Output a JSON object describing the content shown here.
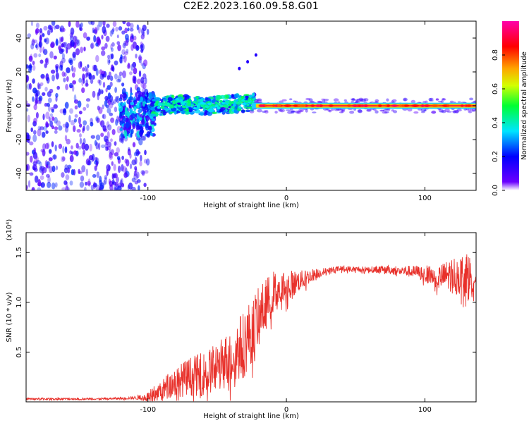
{
  "title": "C2E2.2023.160.09.58.G01",
  "colors": {
    "snr_line": "#e8302a",
    "low_amp": "#7a2ee8",
    "high_amp": "#ff2a2a",
    "frame": "#000000"
  },
  "chart_data": [
    {
      "type": "heatmap",
      "xlabel": "Height of straight line (km)",
      "ylabel": "Frequency (Hz)",
      "xlim": [
        -188,
        137
      ],
      "ylim": [
        -50,
        50
      ],
      "x_ticks": [
        -100,
        0,
        100
      ],
      "x_tick_labels": [
        "-100",
        "0",
        "100"
      ],
      "y_ticks": [
        -40,
        -20,
        0,
        20,
        40
      ],
      "y_tick_labels": [
        "-40",
        "-20",
        "0",
        "20",
        "40"
      ],
      "colorbar": {
        "label": "Normalized spectral amplitude",
        "range": [
          0,
          1
        ],
        "ticks": [
          0.0,
          0.2,
          0.4,
          0.6,
          0.8
        ],
        "tick_labels": [
          "0.0",
          "0.2",
          "0.4",
          "0.6",
          "0.8"
        ],
        "colormap": [
          "#ffffff",
          "#6a00ff",
          "#0000ff",
          "#00e5ff",
          "#00ff33",
          "#d4ff00",
          "#ffa500",
          "#ff0000",
          "#ff00aa"
        ]
      },
      "regions": [
        {
          "name": "noise",
          "x_range": [
            -188,
            -100
          ],
          "f_range": [
            -50,
            50
          ],
          "amplitude": 0.1
        },
        {
          "name": "onset",
          "x_range": [
            -120,
            -95
          ],
          "f_range": [
            -18,
            8
          ],
          "amplitude": 0.3
        },
        {
          "name": "drifting-signal",
          "x_range": [
            -95,
            -25
          ],
          "f_center_start": -2,
          "f_center_end": 2,
          "amplitude": 0.45
        },
        {
          "name": "stable-signal",
          "x_range": [
            -25,
            137
          ],
          "f_center": 0,
          "amplitude": 0.95
        }
      ],
      "ridge": {
        "x": [
          -100,
          -80,
          -60,
          -40,
          -25,
          -10,
          0,
          30,
          60,
          90,
          120,
          135
        ],
        "f": [
          -2,
          1,
          0,
          1,
          2,
          0,
          0,
          0,
          0,
          0,
          0,
          -1
        ]
      },
      "spur": {
        "x": [
          -34,
          -28,
          -22
        ],
        "f": [
          22,
          26,
          30
        ]
      }
    },
    {
      "type": "line",
      "xlabel": "Height of straight line (km)",
      "ylabel": "SNR (10 * v/v)",
      "y_scale_note": "(x10⁴)",
      "xlim": [
        -188,
        137
      ],
      "ylim": [
        0,
        1.7
      ],
      "x_ticks": [
        -100,
        0,
        100
      ],
      "x_tick_labels": [
        "-100",
        "0",
        "100"
      ],
      "y_ticks": [
        0.5,
        1.0,
        1.5
      ],
      "y_tick_labels": [
        "0.5",
        "1.0",
        "1.5"
      ],
      "series": [
        {
          "envelope_x": [
            -188,
            -160,
            -130,
            -110,
            -100,
            -90,
            -80,
            -70,
            -60,
            -50,
            -40,
            -30,
            -20,
            -10,
            0,
            10,
            20,
            30,
            40,
            50,
            60,
            70,
            80,
            90,
            100,
            110,
            120,
            130,
            137
          ],
          "envelope_mean": [
            0.03,
            0.03,
            0.03,
            0.04,
            0.05,
            0.12,
            0.2,
            0.25,
            0.28,
            0.35,
            0.45,
            0.6,
            0.85,
            1.1,
            1.15,
            1.22,
            1.28,
            1.32,
            1.34,
            1.33,
            1.33,
            1.33,
            1.32,
            1.31,
            1.29,
            1.25,
            1.28,
            1.27,
            1.25
          ],
          "envelope_amp": [
            0.01,
            0.01,
            0.01,
            0.015,
            0.05,
            0.12,
            0.15,
            0.2,
            0.22,
            0.25,
            0.3,
            0.35,
            0.3,
            0.22,
            0.18,
            0.1,
            0.06,
            0.03,
            0.03,
            0.03,
            0.03,
            0.04,
            0.05,
            0.06,
            0.08,
            0.12,
            0.18,
            0.22,
            0.2
          ]
        }
      ]
    }
  ]
}
